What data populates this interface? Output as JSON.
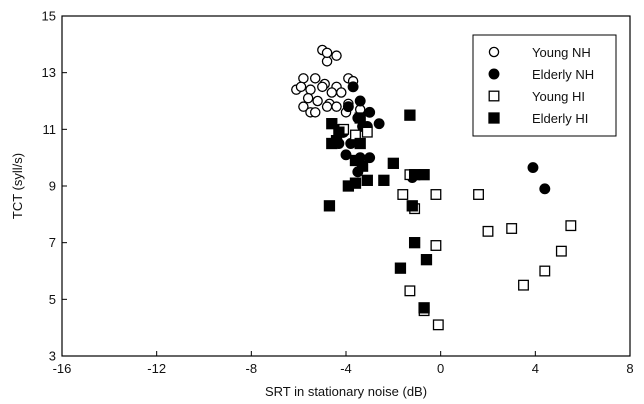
{
  "chart_data": {
    "type": "scatter",
    "xlabel": "SRT in stationary noise (dB)",
    "ylabel": "TCT (syll/s)",
    "xlim": [
      -16,
      8
    ],
    "ylim": [
      3,
      15
    ],
    "xticks": [
      -16,
      -12,
      -8,
      -4,
      0,
      4,
      8
    ],
    "yticks": [
      3,
      5,
      7,
      9,
      11,
      13,
      15
    ],
    "x_tick_labels": [
      "-16",
      "-12",
      "-8",
      "-4",
      "0",
      "4",
      "8"
    ],
    "y_tick_labels": [
      "3",
      "5",
      "7",
      "9",
      "11",
      "13",
      "15"
    ],
    "grid": false,
    "legend_position": "top-right",
    "legend": [
      "Young NH",
      "Elderly NH",
      "Young HI",
      "Elderly HI"
    ],
    "series": [
      {
        "name": "Young NH",
        "marker": "open-circle",
        "points": [
          [
            -5.0,
            13.8
          ],
          [
            -4.8,
            13.4
          ],
          [
            -4.4,
            13.6
          ],
          [
            -4.8,
            13.7
          ],
          [
            -5.8,
            12.8
          ],
          [
            -5.3,
            12.8
          ],
          [
            -4.9,
            12.6
          ],
          [
            -4.4,
            12.5
          ],
          [
            -3.9,
            12.8
          ],
          [
            -3.7,
            12.7
          ],
          [
            -6.1,
            12.4
          ],
          [
            -5.9,
            12.5
          ],
          [
            -5.5,
            12.4
          ],
          [
            -5.0,
            12.5
          ],
          [
            -4.6,
            12.3
          ],
          [
            -4.2,
            12.3
          ],
          [
            -5.6,
            12.1
          ],
          [
            -5.2,
            12.0
          ],
          [
            -4.7,
            11.9
          ],
          [
            -3.9,
            11.9
          ],
          [
            -5.8,
            11.8
          ],
          [
            -5.5,
            11.6
          ],
          [
            -4.8,
            11.8
          ],
          [
            -4.0,
            11.6
          ],
          [
            -5.3,
            11.6
          ],
          [
            -3.4,
            11.7
          ],
          [
            -4.4,
            11.8
          ]
        ]
      },
      {
        "name": "Elderly NH",
        "marker": "filled-circle",
        "points": [
          [
            -3.7,
            12.5
          ],
          [
            -3.4,
            12.0
          ],
          [
            -3.9,
            11.8
          ],
          [
            -3.5,
            11.4
          ],
          [
            -3.0,
            11.6
          ],
          [
            -3.3,
            11.1
          ],
          [
            -4.3,
            11.0
          ],
          [
            -3.1,
            11.1
          ],
          [
            -4.1,
            10.9
          ],
          [
            -2.6,
            11.2
          ],
          [
            -3.8,
            10.5
          ],
          [
            -4.3,
            10.5
          ],
          [
            -3.4,
            10.0
          ],
          [
            -4.0,
            10.1
          ],
          [
            -3.0,
            10.0
          ],
          [
            -3.5,
            9.5
          ],
          [
            -1.2,
            9.3
          ],
          [
            3.9,
            9.65
          ],
          [
            4.4,
            8.9
          ]
        ]
      },
      {
        "name": "Young HI",
        "marker": "open-square",
        "points": [
          [
            -4.1,
            11.0
          ],
          [
            -3.6,
            10.8
          ],
          [
            -3.1,
            10.9
          ],
          [
            -1.3,
            9.4
          ],
          [
            -0.2,
            8.7
          ],
          [
            -1.6,
            8.7
          ],
          [
            -1.1,
            8.2
          ],
          [
            1.6,
            8.7
          ],
          [
            2.0,
            7.4
          ],
          [
            3.0,
            7.5
          ],
          [
            5.5,
            7.6
          ],
          [
            5.1,
            6.7
          ],
          [
            -0.2,
            6.9
          ],
          [
            4.4,
            6.0
          ],
          [
            3.5,
            5.5
          ],
          [
            -1.3,
            5.3
          ],
          [
            -0.7,
            4.6
          ],
          [
            -0.1,
            4.1
          ]
        ]
      },
      {
        "name": "Elderly HI",
        "marker": "filled-square",
        "points": [
          [
            -4.6,
            11.2
          ],
          [
            -4.3,
            10.9
          ],
          [
            -4.6,
            10.5
          ],
          [
            -4.4,
            10.6
          ],
          [
            -3.4,
            11.4
          ],
          [
            -1.3,
            11.5
          ],
          [
            -3.4,
            10.5
          ],
          [
            -3.6,
            9.9
          ],
          [
            -3.3,
            9.7
          ],
          [
            -2.0,
            9.8
          ],
          [
            -3.9,
            9.0
          ],
          [
            -3.6,
            9.1
          ],
          [
            -3.1,
            9.2
          ],
          [
            -2.4,
            9.2
          ],
          [
            -1.1,
            9.4
          ],
          [
            -0.7,
            9.4
          ],
          [
            -1.2,
            8.3
          ],
          [
            -4.7,
            8.3
          ],
          [
            -1.1,
            7.0
          ],
          [
            -0.6,
            6.4
          ],
          [
            -1.7,
            6.1
          ],
          [
            -0.7,
            4.7
          ]
        ]
      }
    ]
  }
}
